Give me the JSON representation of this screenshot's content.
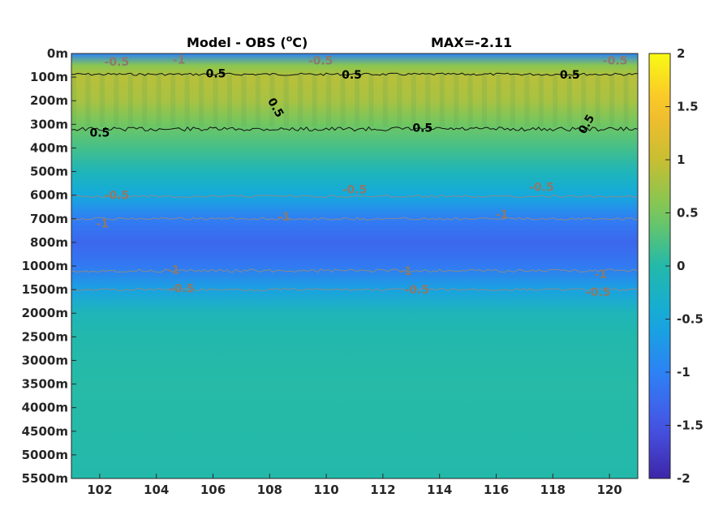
{
  "chart_data": {
    "type": "heatmap",
    "title": "Model - OBS (",
    "title_superscript": "o",
    "title_unit": "C)",
    "annotation": "MAX=-2.11",
    "x_ticks": [
      102,
      104,
      106,
      108,
      110,
      112,
      114,
      116,
      118,
      120
    ],
    "xlim": [
      101,
      121
    ],
    "y_ticks": [
      "0m",
      "100m",
      "200m",
      "300m",
      "400m",
      "500m",
      "600m",
      "700m",
      "800m",
      "1000m",
      "1500m",
      "2000m",
      "2500m",
      "3000m",
      "3500m",
      "4000m",
      "4500m",
      "5000m",
      "5500m"
    ],
    "colorbar": {
      "ticks": [
        "2",
        "1.5",
        "1",
        "0.5",
        "0",
        "-0.5",
        "-1",
        "-1.5",
        "-2"
      ],
      "range": [
        -2,
        2
      ],
      "colormap": "parula"
    },
    "depth_profile": [
      {
        "level": 0,
        "value": -1.0
      },
      {
        "level": 0.5,
        "value": 0.6
      },
      {
        "level": 1,
        "value": 0.9
      },
      {
        "level": 2,
        "value": 0.8
      },
      {
        "level": 3,
        "value": 0.45
      },
      {
        "level": 4,
        "value": 0.2
      },
      {
        "level": 5,
        "value": -0.15
      },
      {
        "level": 6,
        "value": -0.5
      },
      {
        "level": 7,
        "value": -1.05
      },
      {
        "level": 8,
        "value": -1.3
      },
      {
        "level": 9,
        "value": -1.1
      },
      {
        "level": 10,
        "value": -0.6
      },
      {
        "level": 11,
        "value": -0.15
      },
      {
        "level": 12,
        "value": -0.02
      },
      {
        "level": 14,
        "value": 0.02
      },
      {
        "level": 18,
        "value": 0.0
      }
    ],
    "contour_labels": [
      {
        "text": "0.5",
        "x": 106.1,
        "level": 0.85,
        "color": "black",
        "rotate": 0
      },
      {
        "text": "0.5",
        "x": 110.9,
        "level": 0.9,
        "color": "black",
        "rotate": 0
      },
      {
        "text": "0.5",
        "x": 118.6,
        "level": 0.9,
        "color": "black",
        "rotate": 0
      },
      {
        "text": "0.5",
        "x": 108.1,
        "level": 2.2,
        "color": "black",
        "rotate": 60
      },
      {
        "text": "0.5",
        "x": 102.0,
        "level": 3.35,
        "color": "black",
        "rotate": 0
      },
      {
        "text": "0.5",
        "x": 113.4,
        "level": 3.15,
        "color": "black",
        "rotate": 0
      },
      {
        "text": "0.5",
        "x": 119.3,
        "level": 2.9,
        "color": "black",
        "rotate": -60
      },
      {
        "text": "-0.5",
        "x": 102.6,
        "level": 0.35,
        "color": "gray",
        "rotate": 0
      },
      {
        "text": "-1",
        "x": 104.8,
        "level": 0.25,
        "color": "gray",
        "rotate": 0
      },
      {
        "text": "-0.5",
        "x": 109.8,
        "level": 0.3,
        "color": "gray",
        "rotate": 0
      },
      {
        "text": "-0.5",
        "x": 120.2,
        "level": 0.3,
        "color": "gray",
        "rotate": 0
      },
      {
        "text": "-0.5",
        "x": 102.6,
        "level": 6.0,
        "color": "gray",
        "rotate": 0
      },
      {
        "text": "-0.5",
        "x": 111.0,
        "level": 5.75,
        "color": "gray",
        "rotate": 0
      },
      {
        "text": "-0.5",
        "x": 117.6,
        "level": 5.65,
        "color": "gray",
        "rotate": 0
      },
      {
        "text": "-1",
        "x": 102.1,
        "level": 7.2,
        "color": "gray",
        "rotate": 0
      },
      {
        "text": "-1",
        "x": 108.5,
        "level": 6.9,
        "color": "gray",
        "rotate": 0
      },
      {
        "text": "-1",
        "x": 116.2,
        "level": 6.8,
        "color": "gray",
        "rotate": 0
      },
      {
        "text": "-1",
        "x": 104.6,
        "level": 9.15,
        "color": "gray",
        "rotate": 0
      },
      {
        "text": "-1",
        "x": 112.8,
        "level": 9.2,
        "color": "gray",
        "rotate": 0
      },
      {
        "text": "-1",
        "x": 119.7,
        "level": 9.35,
        "color": "gray",
        "rotate": 0
      },
      {
        "text": "-0.5",
        "x": 104.9,
        "level": 9.95,
        "color": "gray",
        "rotate": 0
      },
      {
        "text": "-0.5",
        "x": 113.2,
        "level": 10.0,
        "color": "gray",
        "rotate": 0
      },
      {
        "text": "-0.5",
        "x": 119.6,
        "level": 10.1,
        "color": "gray",
        "rotate": 0
      }
    ],
    "grid": false
  }
}
